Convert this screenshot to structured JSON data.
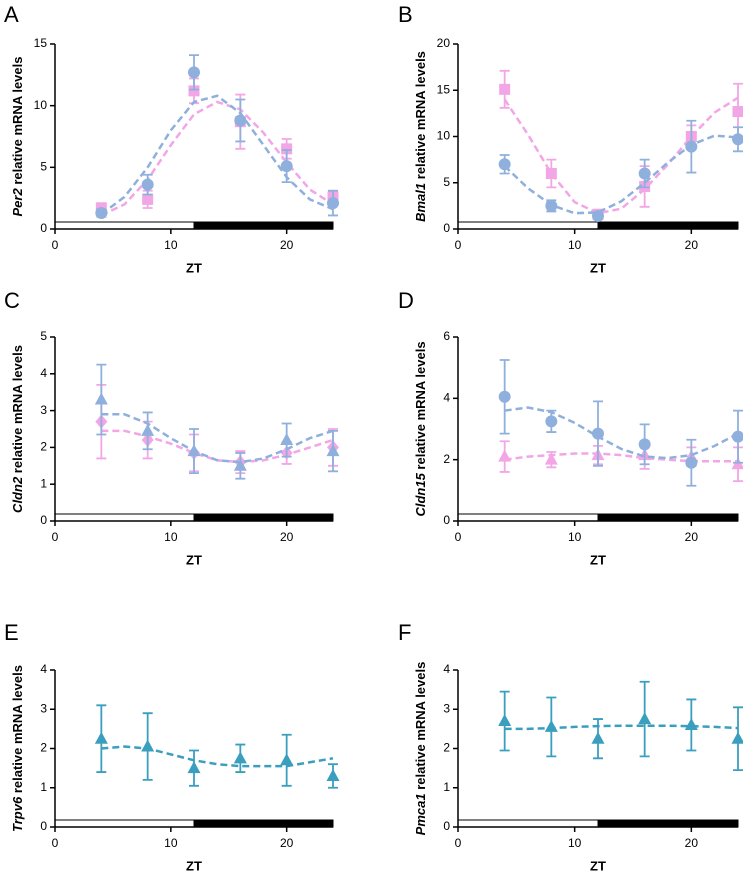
{
  "chart_data": [
    {
      "type": "scatter",
      "panel": "A",
      "ylabel_gene": "Per2",
      "ylabel_text": "relative mRNA levels",
      "xlabel": "ZT",
      "x": [
        4,
        8,
        12,
        16,
        20,
        24
      ],
      "fit_x": [
        4,
        6,
        8,
        10,
        12,
        14,
        16,
        18,
        20,
        22,
        24
      ],
      "xlim": [
        0,
        24
      ],
      "xticks": [
        0,
        10,
        20
      ],
      "ylim": [
        0,
        15
      ],
      "yticks": [
        0,
        5,
        10,
        15
      ],
      "light_dark": [
        {
          "start": 0,
          "end": 12,
          "color": "#ffffff"
        },
        {
          "start": 12,
          "end": 24,
          "color": "#000000"
        }
      ],
      "series": [
        {
          "color": "#f2a6e6",
          "marker": "square",
          "values": [
            1.7,
            2.4,
            11.2,
            8.7,
            6.5,
            2.6
          ],
          "errors": [
            0.4,
            0.7,
            1.0,
            2.2,
            0.8,
            0.5
          ],
          "fit": [
            1.1,
            2.0,
            4.0,
            6.8,
            9.3,
            10.3,
            9.7,
            7.8,
            5.4,
            3.2,
            2.0
          ]
        },
        {
          "color": "#8fb0dd",
          "marker": "circle",
          "values": [
            1.3,
            3.6,
            12.7,
            8.8,
            5.1,
            2.1
          ],
          "errors": [
            0.3,
            0.8,
            1.4,
            1.7,
            1.3,
            1.0
          ],
          "fit": [
            1.2,
            2.6,
            5.0,
            8.0,
            10.3,
            10.8,
            9.4,
            6.8,
            4.2,
            2.4,
            1.6
          ]
        }
      ]
    },
    {
      "type": "scatter",
      "panel": "B",
      "ylabel_gene": "Bmal1",
      "ylabel_text": "relative mRNA levels",
      "xlabel": "ZT",
      "x": [
        4,
        8,
        12,
        16,
        20,
        24
      ],
      "fit_x": [
        4,
        6,
        8,
        10,
        12,
        14,
        16,
        18,
        20,
        22,
        24
      ],
      "xlim": [
        0,
        24
      ],
      "xticks": [
        0,
        10,
        20
      ],
      "ylim": [
        0,
        20
      ],
      "yticks": [
        0,
        5,
        10,
        15,
        20
      ],
      "light_dark": [
        {
          "start": 0,
          "end": 12,
          "color": "#ffffff"
        },
        {
          "start": 12,
          "end": 24,
          "color": "#000000"
        }
      ],
      "series": [
        {
          "color": "#f2a6e6",
          "marker": "square",
          "values": [
            15.1,
            6.0,
            1.6,
            4.6,
            10.0,
            12.7
          ],
          "errors": [
            2.0,
            1.5,
            0.3,
            2.2,
            1.2,
            3.0
          ],
          "fit": [
            14.0,
            10.2,
            6.0,
            2.9,
            1.7,
            2.2,
            4.3,
            7.0,
            10.0,
            12.6,
            14.2
          ]
        },
        {
          "color": "#8fb0dd",
          "marker": "circle",
          "values": [
            7.0,
            2.5,
            1.4,
            6.0,
            8.9,
            9.7
          ],
          "errors": [
            1.0,
            0.6,
            0.3,
            1.5,
            2.8,
            1.3
          ],
          "fit": [
            6.8,
            4.4,
            2.6,
            1.7,
            1.8,
            3.0,
            5.0,
            7.2,
            9.1,
            10.1,
            9.9
          ]
        }
      ]
    },
    {
      "type": "scatter",
      "panel": "C",
      "ylabel_gene": "Cldn2",
      "ylabel_text": "relative mRNA levels",
      "xlabel": "ZT",
      "x": [
        4,
        8,
        12,
        16,
        20,
        24
      ],
      "fit_x": [
        4,
        6,
        8,
        10,
        12,
        14,
        16,
        18,
        20,
        22,
        24
      ],
      "xlim": [
        0,
        24
      ],
      "xticks": [
        0,
        10,
        20
      ],
      "ylim": [
        0,
        5
      ],
      "yticks": [
        0,
        1,
        2,
        3,
        4,
        5
      ],
      "light_dark": [
        {
          "start": 0,
          "end": 12,
          "color": "#ffffff"
        },
        {
          "start": 12,
          "end": 24,
          "color": "#000000"
        }
      ],
      "series": [
        {
          "color": "#f2a6e6",
          "marker": "diamond",
          "values": [
            2.7,
            2.2,
            1.85,
            1.6,
            1.85,
            2.0
          ],
          "errors": [
            1.0,
            0.5,
            0.5,
            0.3,
            0.3,
            0.5
          ],
          "fit": [
            2.45,
            2.45,
            2.3,
            2.1,
            1.85,
            1.65,
            1.6,
            1.65,
            1.8,
            2.0,
            2.2
          ]
        },
        {
          "color": "#8fb0dd",
          "marker": "triangle",
          "values": [
            3.3,
            2.45,
            1.9,
            1.5,
            2.2,
            1.9
          ],
          "errors": [
            0.95,
            0.5,
            0.6,
            0.35,
            0.45,
            0.55
          ],
          "fit": [
            2.9,
            2.9,
            2.65,
            2.25,
            1.9,
            1.65,
            1.6,
            1.7,
            1.95,
            2.25,
            2.45
          ]
        }
      ]
    },
    {
      "type": "scatter",
      "panel": "D",
      "ylabel_gene": "Cldn15",
      "ylabel_text": "relative mRNA levels",
      "xlabel": "ZT",
      "x": [
        4,
        8,
        12,
        16,
        20,
        24
      ],
      "fit_x": [
        4,
        6,
        8,
        10,
        12,
        14,
        16,
        18,
        20,
        22,
        24
      ],
      "xlim": [
        0,
        24
      ],
      "xticks": [
        0,
        10,
        20
      ],
      "ylim": [
        0,
        6
      ],
      "yticks": [
        0,
        2,
        4,
        6
      ],
      "light_dark": [
        {
          "start": 0,
          "end": 12,
          "color": "#ffffff"
        },
        {
          "start": 12,
          "end": 24,
          "color": "#000000"
        }
      ],
      "series": [
        {
          "color": "#f2a6e6",
          "marker": "triangle",
          "values": [
            2.1,
            2.0,
            2.15,
            2.15,
            2.1,
            1.85
          ],
          "errors": [
            0.5,
            0.25,
            0.3,
            0.45,
            0.3,
            0.55
          ],
          "fit": [
            2.0,
            2.1,
            2.15,
            2.2,
            2.2,
            2.15,
            2.05,
            2.0,
            1.95,
            1.95,
            1.95
          ]
        },
        {
          "color": "#8fb0dd",
          "marker": "circle",
          "values": [
            4.05,
            3.25,
            2.85,
            2.5,
            1.9,
            2.75
          ],
          "errors": [
            1.2,
            0.35,
            1.05,
            0.65,
            0.75,
            0.85
          ],
          "fit": [
            3.6,
            3.7,
            3.55,
            3.2,
            2.75,
            2.35,
            2.1,
            2.05,
            2.15,
            2.45,
            2.85
          ]
        }
      ]
    },
    {
      "type": "scatter",
      "panel": "E",
      "ylabel_gene": "Trpv6",
      "ylabel_text": "relative mRNA levels",
      "xlabel": "ZT",
      "x": [
        4,
        8,
        12,
        16,
        20,
        24
      ],
      "fit_x": [
        4,
        6,
        8,
        10,
        12,
        14,
        16,
        18,
        20,
        22,
        24
      ],
      "xlim": [
        0,
        24
      ],
      "xticks": [
        0,
        10,
        20
      ],
      "ylim": [
        0,
        4
      ],
      "yticks": [
        0,
        1,
        2,
        3,
        4
      ],
      "light_dark": [
        {
          "start": 0,
          "end": 12,
          "color": "#ffffff"
        },
        {
          "start": 12,
          "end": 24,
          "color": "#000000"
        }
      ],
      "series": [
        {
          "color": "#3a9fbf",
          "marker": "triangle",
          "values": [
            2.25,
            2.05,
            1.5,
            1.75,
            1.7,
            1.3
          ],
          "errors": [
            0.85,
            0.85,
            0.45,
            0.35,
            0.65,
            0.3
          ],
          "fit": [
            2.0,
            2.05,
            2.0,
            1.85,
            1.7,
            1.6,
            1.55,
            1.55,
            1.55,
            1.65,
            1.75
          ]
        }
      ]
    },
    {
      "type": "scatter",
      "panel": "F",
      "ylabel_gene": "Pmca1",
      "ylabel_text": "relative mRNA levels",
      "xlabel": "ZT",
      "x": [
        4,
        8,
        12,
        16,
        20,
        24
      ],
      "fit_x": [
        4,
        6,
        8,
        10,
        12,
        14,
        16,
        18,
        20,
        22,
        24
      ],
      "xlim": [
        0,
        24
      ],
      "xticks": [
        0,
        10,
        20
      ],
      "ylim": [
        0,
        4
      ],
      "yticks": [
        0,
        1,
        2,
        3,
        4
      ],
      "light_dark": [
        {
          "start": 0,
          "end": 12,
          "color": "#ffffff"
        },
        {
          "start": 12,
          "end": 24,
          "color": "#000000"
        }
      ],
      "series": [
        {
          "color": "#3a9fbf",
          "marker": "triangle",
          "values": [
            2.7,
            2.55,
            2.25,
            2.75,
            2.6,
            2.25
          ],
          "errors": [
            0.75,
            0.75,
            0.5,
            0.95,
            0.65,
            0.8
          ],
          "fit": [
            2.5,
            2.5,
            2.52,
            2.55,
            2.57,
            2.58,
            2.58,
            2.58,
            2.57,
            2.55,
            2.52
          ]
        }
      ]
    }
  ]
}
